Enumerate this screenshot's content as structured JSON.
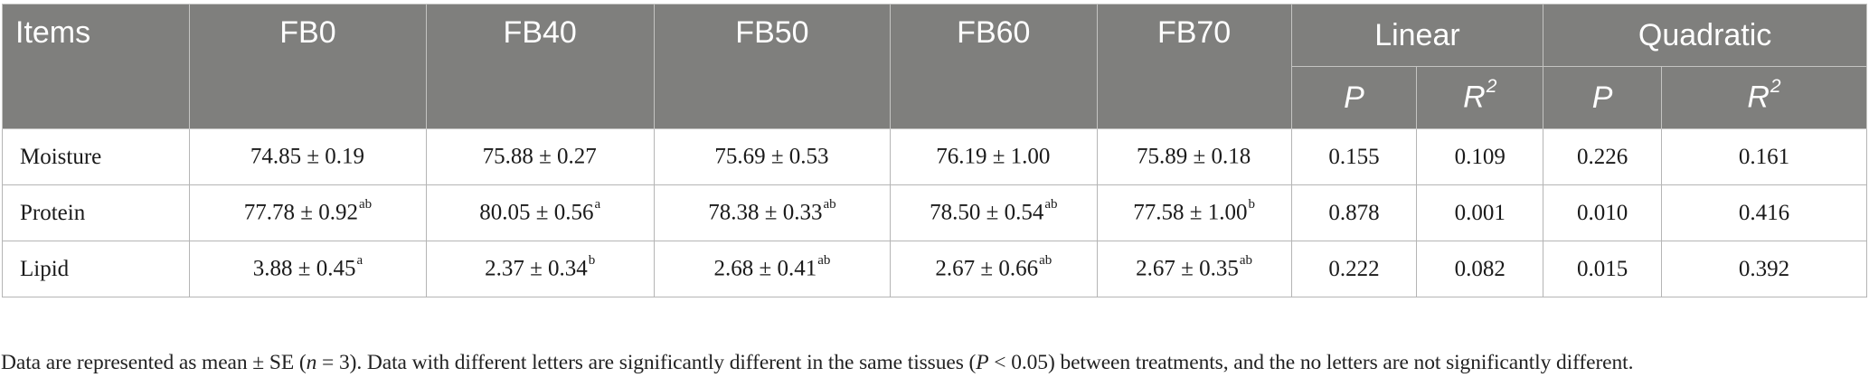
{
  "table": {
    "header": {
      "items": "Items",
      "groups": [
        "FB0",
        "FB40",
        "FB50",
        "FB60",
        "FB70"
      ],
      "linear": "Linear",
      "quadratic": "Quadratic",
      "sub_p": "P",
      "sub_r": "R",
      "sub_r_sup": "2"
    },
    "rows": [
      {
        "label": "Moisture",
        "cells": [
          {
            "value": "74.85 ± 0.19",
            "sup": ""
          },
          {
            "value": "75.88 ± 0.27",
            "sup": ""
          },
          {
            "value": "75.69 ± 0.53",
            "sup": ""
          },
          {
            "value": "76.19 ± 1.00",
            "sup": ""
          },
          {
            "value": "75.89 ± 0.18",
            "sup": ""
          }
        ],
        "linear_p": "0.155",
        "linear_r2": "0.109",
        "quadratic_p": "0.226",
        "quadratic_r2": "0.161"
      },
      {
        "label": "Protein",
        "cells": [
          {
            "value": "77.78 ± 0.92",
            "sup": "ab"
          },
          {
            "value": "80.05 ± 0.56",
            "sup": "a"
          },
          {
            "value": "78.38 ± 0.33",
            "sup": "ab"
          },
          {
            "value": "78.50 ± 0.54",
            "sup": "ab"
          },
          {
            "value": "77.58 ± 1.00",
            "sup": "b"
          }
        ],
        "linear_p": "0.878",
        "linear_r2": "0.001",
        "quadratic_p": "0.010",
        "quadratic_r2": "0.416"
      },
      {
        "label": "Lipid",
        "cells": [
          {
            "value": "3.88 ± 0.45",
            "sup": "a"
          },
          {
            "value": "2.37 ± 0.34",
            "sup": "b"
          },
          {
            "value": "2.68 ± 0.41",
            "sup": "ab"
          },
          {
            "value": "2.67 ± 0.66",
            "sup": "ab"
          },
          {
            "value": "2.67 ± 0.35",
            "sup": "ab"
          }
        ],
        "linear_p": "0.222",
        "linear_r2": "0.082",
        "quadratic_p": "0.015",
        "quadratic_r2": "0.392"
      }
    ]
  },
  "footnote": {
    "part1": "Data are represented as mean ± SE (",
    "n_symbol": "n",
    "part2": " = 3). Data with different letters are significantly different in the same tissues (",
    "p_symbol": "P",
    "part3": " < 0.05) between treatments, and the no letters are not significantly different."
  }
}
